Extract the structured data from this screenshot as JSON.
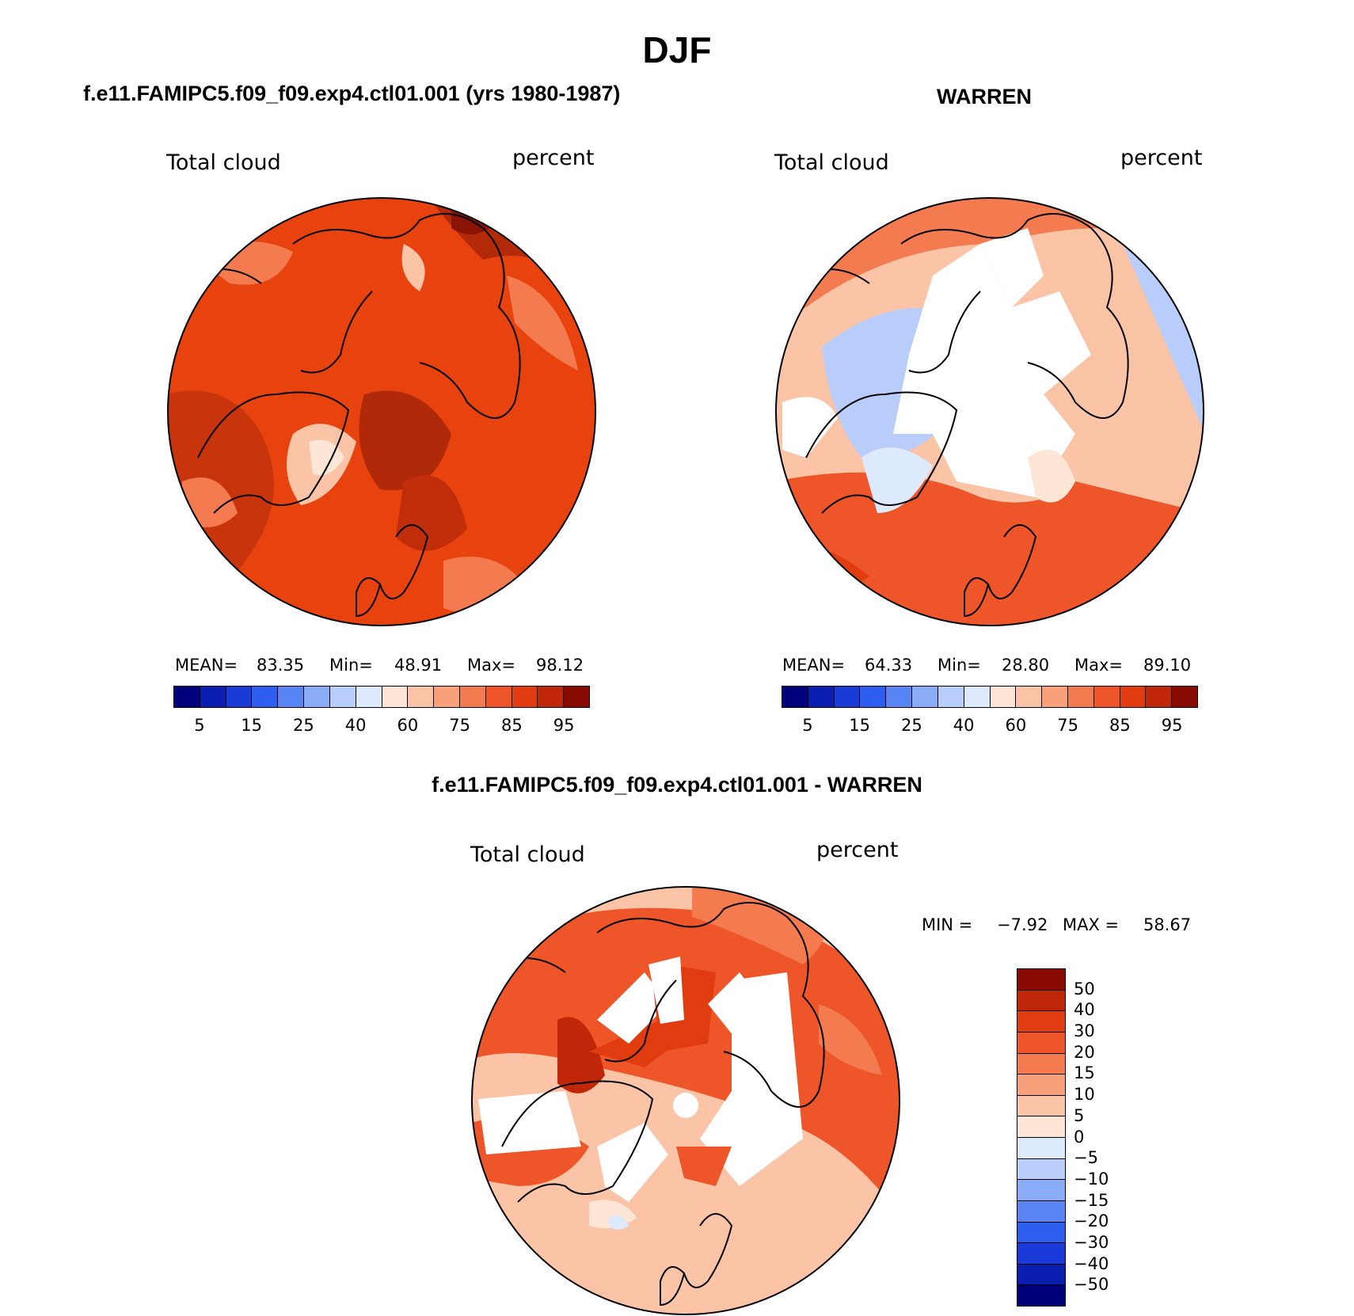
{
  "title": "DJF",
  "colors": {
    "abs_scale": [
      "#00007a",
      "#0a1fb0",
      "#1a3bd8",
      "#2e5ef0",
      "#5a86f5",
      "#8aacf7",
      "#b8cdfa",
      "#dde9fc",
      "#fde6d5",
      "#fbc4a6",
      "#f8a07c",
      "#f47a4f",
      "#ee5528",
      "#e03c10",
      "#c02608",
      "#8a0a04"
    ],
    "diff_scale": [
      "#8a0a04",
      "#c02608",
      "#e03c10",
      "#ee5528",
      "#f47a4f",
      "#f8a07c",
      "#fbc4a6",
      "#fde6d5",
      "#dde9fc",
      "#b8cdfa",
      "#8aacf7",
      "#5a86f5",
      "#2e5ef0",
      "#1a3bd8",
      "#0a1fb0",
      "#00007a"
    ]
  },
  "panels": {
    "model": {
      "title": "f.e11.FAMIPC5.f09_f09.exp4.ctl01.001 (yrs 1980-1987)",
      "variable": "Total cloud",
      "units": "percent",
      "mean_label": "MEAN=",
      "mean": "83.35",
      "min_label": "Min=",
      "min": "48.91",
      "max_label": "Max=",
      "max": "98.12"
    },
    "obs": {
      "title": "WARREN",
      "variable": "Total cloud",
      "units": "percent",
      "mean_label": "MEAN=",
      "mean": "64.33",
      "min_label": "Min=",
      "min": "28.80",
      "max_label": "Max=",
      "max": "89.10"
    },
    "diff": {
      "title": "f.e11.FAMIPC5.f09_f09.exp4.ctl01.001 - WARREN",
      "variable": "Total cloud",
      "units": "percent",
      "min_label": "MIN =",
      "min": "−7.92",
      "max_label": "MAX =",
      "max": "58.67"
    }
  },
  "abs_colorbar_ticks": [
    "5",
    "15",
    "25",
    "40",
    "60",
    "75",
    "85",
    "95"
  ],
  "diff_colorbar_ticks": [
    "50",
    "40",
    "30",
    "20",
    "15",
    "10",
    "5",
    "0",
    "−5",
    "−10",
    "−15",
    "−20",
    "−30",
    "−40",
    "−50"
  ]
}
